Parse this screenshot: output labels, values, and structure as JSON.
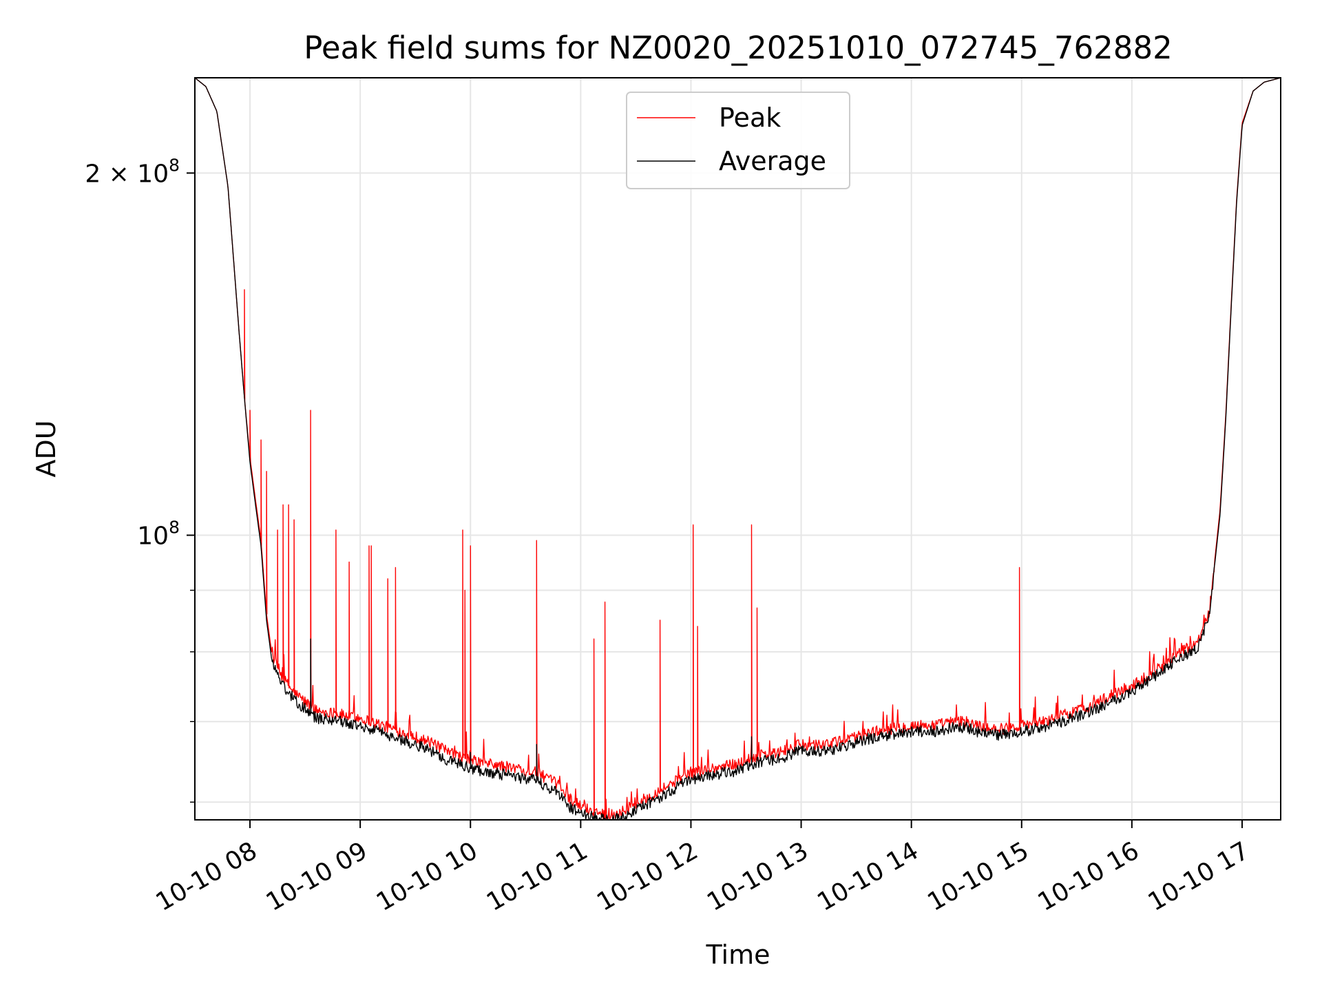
{
  "chart_data": {
    "type": "line",
    "title": "Peak field sums for NZ0020_20251010_072745_762882",
    "xlabel": "Time",
    "ylabel": "ADU",
    "yscale": "log",
    "grid": true,
    "legend_position": "upper center",
    "xlim_hours": [
      7.5,
      17.35
    ],
    "ylim": [
      58000000,
      240000000
    ],
    "x_ticks": [
      {
        "value": 8,
        "label": "10-10 08"
      },
      {
        "value": 9,
        "label": "10-10 09"
      },
      {
        "value": 10,
        "label": "10-10 10"
      },
      {
        "value": 11,
        "label": "10-10 11"
      },
      {
        "value": 12,
        "label": "10-10 12"
      },
      {
        "value": 13,
        "label": "10-10 13"
      },
      {
        "value": 14,
        "label": "10-10 14"
      },
      {
        "value": 15,
        "label": "10-10 15"
      },
      {
        "value": 16,
        "label": "10-10 16"
      },
      {
        "value": 17,
        "label": "10-10 17"
      }
    ],
    "y_major_ticks": [
      {
        "value": 100000000,
        "base": "10",
        "exp": "8"
      },
      {
        "value": 200000000,
        "mantissa": "2 × 10",
        "exp": "8"
      }
    ],
    "y_minor_ticks": [
      60000000,
      70000000,
      80000000,
      90000000
    ],
    "series": [
      {
        "name": "Peak",
        "color": "#ff0000",
        "baseline": [
          [
            7.5,
            240000000
          ],
          [
            7.6,
            236000000
          ],
          [
            7.7,
            225000000
          ],
          [
            7.8,
            195000000
          ],
          [
            7.85,
            170000000
          ],
          [
            7.9,
            148000000
          ],
          [
            7.95,
            130000000
          ],
          [
            8.0,
            116000000
          ],
          [
            8.05,
            107000000
          ],
          [
            8.1,
            99000000
          ],
          [
            8.15,
            86000000
          ],
          [
            8.2,
            79500000
          ],
          [
            8.3,
            76000000
          ],
          [
            8.4,
            74000000
          ],
          [
            8.6,
            71500000
          ],
          [
            8.8,
            71000000
          ],
          [
            9.0,
            70500000
          ],
          [
            9.2,
            69500000
          ],
          [
            9.4,
            68500000
          ],
          [
            9.6,
            67500000
          ],
          [
            9.8,
            66000000
          ],
          [
            10.0,
            65000000
          ],
          [
            10.2,
            64500000
          ],
          [
            10.4,
            64000000
          ],
          [
            10.6,
            63500000
          ],
          [
            10.8,
            62000000
          ],
          [
            10.9,
            60500000
          ],
          [
            11.0,
            59500000
          ],
          [
            11.1,
            59000000
          ],
          [
            11.25,
            58500000
          ],
          [
            11.4,
            59000000
          ],
          [
            11.6,
            60500000
          ],
          [
            11.8,
            62000000
          ],
          [
            12.0,
            63500000
          ],
          [
            12.2,
            64000000
          ],
          [
            12.4,
            64500000
          ],
          [
            12.6,
            65500000
          ],
          [
            12.8,
            66000000
          ],
          [
            13.0,
            67000000
          ],
          [
            13.2,
            67000000
          ],
          [
            13.4,
            67500000
          ],
          [
            13.6,
            68500000
          ],
          [
            13.8,
            69000000
          ],
          [
            14.0,
            69500000
          ],
          [
            14.2,
            69500000
          ],
          [
            14.4,
            70000000
          ],
          [
            14.5,
            70000000
          ],
          [
            14.6,
            69500000
          ],
          [
            14.8,
            69000000
          ],
          [
            15.0,
            69500000
          ],
          [
            15.2,
            70000000
          ],
          [
            15.4,
            71000000
          ],
          [
            15.6,
            72000000
          ],
          [
            15.8,
            73500000
          ],
          [
            16.0,
            75000000
          ],
          [
            16.2,
            77000000
          ],
          [
            16.4,
            79500000
          ],
          [
            16.6,
            81500000
          ],
          [
            16.7,
            86000000
          ],
          [
            16.8,
            105000000
          ],
          [
            16.85,
            125000000
          ],
          [
            16.9,
            155000000
          ],
          [
            16.95,
            190000000
          ],
          [
            17.0,
            220000000
          ],
          [
            17.1,
            234000000
          ],
          [
            17.2,
            238000000
          ],
          [
            17.35,
            240000000
          ]
        ],
        "spikes": [
          [
            7.95,
            160000000
          ],
          [
            8.0,
            127000000
          ],
          [
            8.1,
            120000000
          ],
          [
            8.15,
            113000000
          ],
          [
            8.25,
            101000000
          ],
          [
            8.3,
            106000000
          ],
          [
            8.35,
            106000000
          ],
          [
            8.4,
            103000000
          ],
          [
            8.55,
            127000000
          ],
          [
            8.78,
            101000000
          ],
          [
            8.9,
            95000000
          ],
          [
            9.08,
            98000000
          ],
          [
            9.1,
            98000000
          ],
          [
            9.25,
            92000000
          ],
          [
            9.32,
            94000000
          ],
          [
            9.93,
            101000000
          ],
          [
            9.95,
            90000000
          ],
          [
            10.0,
            98000000
          ],
          [
            10.6,
            99000000
          ],
          [
            11.12,
            82000000
          ],
          [
            11.22,
            88000000
          ],
          [
            11.72,
            85000000
          ],
          [
            12.02,
            102000000
          ],
          [
            12.06,
            84000000
          ],
          [
            12.55,
            102000000
          ],
          [
            12.6,
            87000000
          ],
          [
            14.98,
            94000000
          ]
        ]
      },
      {
        "name": "Average",
        "color": "#000000",
        "baseline": [
          [
            7.5,
            240000000
          ],
          [
            7.6,
            236000000
          ],
          [
            7.7,
            225000000
          ],
          [
            7.8,
            195000000
          ],
          [
            7.85,
            170000000
          ],
          [
            7.9,
            148000000
          ],
          [
            7.95,
            130000000
          ],
          [
            8.0,
            115000000
          ],
          [
            8.05,
            106000000
          ],
          [
            8.1,
            98000000
          ],
          [
            8.15,
            85000000
          ],
          [
            8.2,
            78500000
          ],
          [
            8.3,
            75000000
          ],
          [
            8.4,
            73000000
          ],
          [
            8.6,
            70500000
          ],
          [
            8.8,
            70000000
          ],
          [
            9.0,
            69500000
          ],
          [
            9.2,
            68500000
          ],
          [
            9.4,
            67500000
          ],
          [
            9.6,
            66500000
          ],
          [
            9.8,
            65000000
          ],
          [
            10.0,
            64000000
          ],
          [
            10.2,
            63500000
          ],
          [
            10.4,
            63000000
          ],
          [
            10.6,
            62500000
          ],
          [
            10.8,
            61000000
          ],
          [
            10.9,
            59500000
          ],
          [
            11.0,
            58800000
          ],
          [
            11.1,
            58300000
          ],
          [
            11.25,
            58000000
          ],
          [
            11.4,
            58300000
          ],
          [
            11.6,
            59700000
          ],
          [
            11.8,
            61200000
          ],
          [
            12.0,
            62700000
          ],
          [
            12.2,
            63200000
          ],
          [
            12.4,
            63700000
          ],
          [
            12.6,
            64700000
          ],
          [
            12.8,
            65200000
          ],
          [
            13.0,
            66200000
          ],
          [
            13.2,
            66200000
          ],
          [
            13.4,
            66700000
          ],
          [
            13.6,
            67700000
          ],
          [
            13.8,
            68200000
          ],
          [
            14.0,
            68700000
          ],
          [
            14.2,
            68700000
          ],
          [
            14.4,
            69200000
          ],
          [
            14.5,
            69200000
          ],
          [
            14.6,
            68700000
          ],
          [
            14.8,
            68200000
          ],
          [
            15.0,
            68700000
          ],
          [
            15.2,
            69200000
          ],
          [
            15.4,
            70200000
          ],
          [
            15.6,
            71200000
          ],
          [
            15.8,
            72700000
          ],
          [
            16.0,
            74200000
          ],
          [
            16.2,
            76200000
          ],
          [
            16.4,
            78700000
          ],
          [
            16.6,
            80700000
          ],
          [
            16.7,
            85500000
          ],
          [
            16.8,
            104000000
          ],
          [
            16.85,
            124000000
          ],
          [
            16.9,
            154000000
          ],
          [
            16.95,
            189000000
          ],
          [
            17.0,
            219000000
          ],
          [
            17.1,
            234000000
          ],
          [
            17.2,
            238000000
          ],
          [
            17.35,
            240000000
          ]
        ],
        "spikes": [
          [
            8.55,
            82000000
          ],
          [
            10.0,
            66000000
          ],
          [
            10.6,
            67000000
          ],
          [
            12.55,
            68000000
          ]
        ]
      }
    ]
  }
}
